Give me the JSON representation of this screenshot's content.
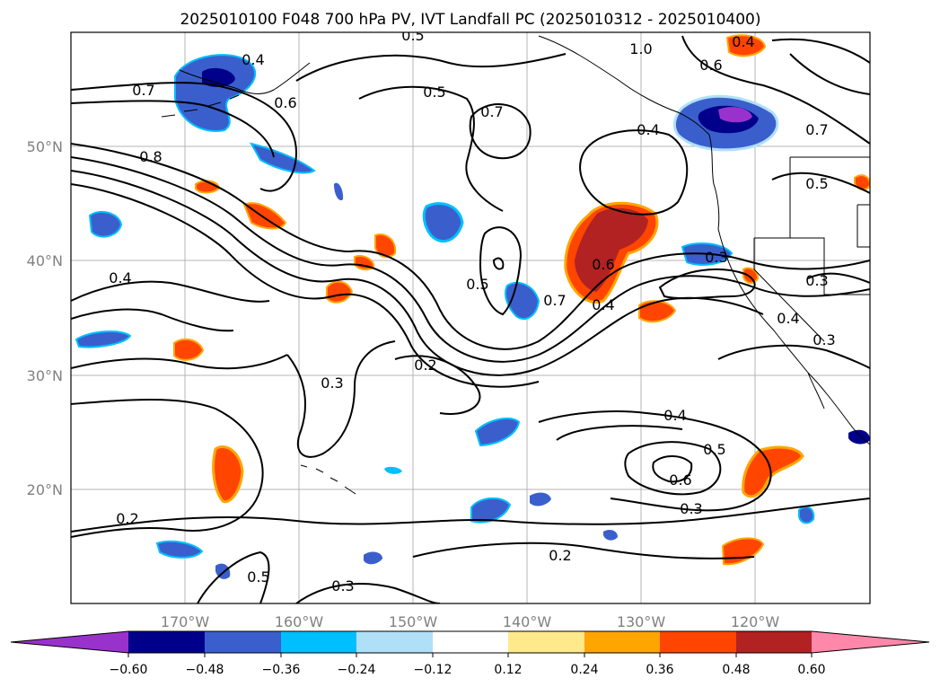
{
  "map": {
    "title": "2025010100 F048 700 hPa PV, IVT Landfall PC (2025010312 - 2025010400)",
    "projection": "PlateCarree",
    "extent": {
      "lon": [
        -180,
        -110
      ],
      "lat": [
        10,
        60
      ]
    },
    "gridlines": {
      "lon_labels": [
        "170°W",
        "160°W",
        "150°W",
        "140°W",
        "130°W",
        "120°W"
      ],
      "lat_labels": [
        "50°N",
        "40°N",
        "30°N",
        "20°N"
      ]
    },
    "contour_labels": [
      "0.8",
      "0.7",
      "0.6",
      "0.5",
      "0.4",
      "0.7",
      "0.5",
      "1.0",
      "0.6",
      "0.4",
      "0.7",
      "0.5",
      "0.7",
      "0.6",
      "0.5",
      "0.4",
      "0.3",
      "0.2",
      "0.3",
      "0.4",
      "0.3",
      "0.3",
      "0.4",
      "0.5",
      "0.6",
      "0.3",
      "0.2",
      "0.2",
      "0.3",
      "0.4",
      "0.4",
      "0.5"
    ],
    "colorbar": {
      "ticks": [
        "−0.60",
        "−0.48",
        "−0.36",
        "−0.24",
        "−0.12",
        "0.12",
        "0.24",
        "0.36",
        "0.48",
        "0.60"
      ],
      "colors": [
        "#9932cc",
        "#00008b",
        "#3a5fcd",
        "#00bfff",
        "#b0e0f8",
        "#ffffff",
        "#ffe98a",
        "#ffa500",
        "#ff4500",
        "#b22222",
        "#ff88aa"
      ],
      "extend": "both"
    },
    "legend_colors": {
      "neg1": "#9932cc",
      "neg2": "#00008b",
      "neg3": "#3a5fcd",
      "neg4": "#00bfff",
      "neg5": "#b0e0f8",
      "pos1": "#ffe98a",
      "pos2": "#ffa500",
      "pos3": "#ff4500",
      "pos4": "#b22222",
      "pos5": "#ff88aa"
    }
  }
}
